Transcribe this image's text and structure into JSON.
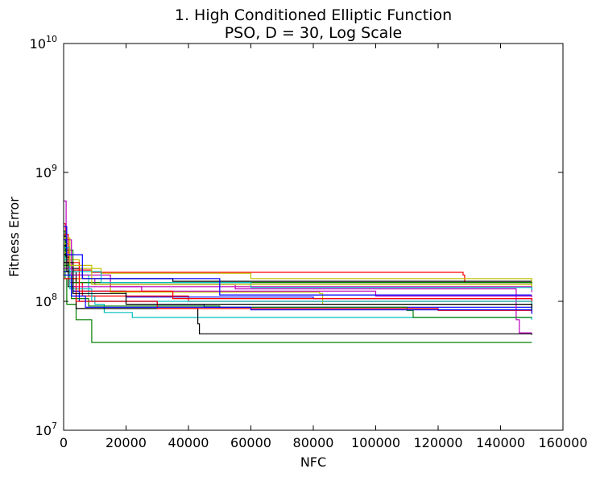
{
  "chart_data": {
    "type": "line",
    "title": "1.   High Conditioned Elliptic Function",
    "subtitle": "PSO, D = 30, Log Scale",
    "xlabel": "NFC",
    "ylabel": "Fitness Error",
    "xlim": [
      0,
      160000
    ],
    "ylim": [
      10000000,
      10000000000
    ],
    "yscale": "log",
    "grid": false,
    "x_ticks": [
      0,
      20000,
      40000,
      60000,
      80000,
      100000,
      120000,
      140000,
      160000
    ],
    "x_tick_labels": [
      "0",
      "20000",
      "40000",
      "60000",
      "80000",
      "100000",
      "120000",
      "140000",
      "160000"
    ],
    "y_ticks": [
      {
        "value": 10000000,
        "base": "10",
        "exp": "7"
      },
      {
        "value": 100000000,
        "base": "10",
        "exp": "8"
      },
      {
        "value": 1000000000,
        "base": "10",
        "exp": "9"
      },
      {
        "value": 10000000000,
        "base": "10",
        "exp": "10"
      }
    ],
    "series": [
      {
        "color": "#ff0000",
        "points": [
          [
            0,
            400000000
          ],
          [
            600,
            250000000
          ],
          [
            1500,
            190000000
          ],
          [
            3000,
            175000000
          ],
          [
            9000,
            168000000
          ],
          [
            118000,
            168000000
          ],
          [
            128000,
            160000000
          ],
          [
            128500,
            140000000
          ],
          [
            150000,
            140000000
          ]
        ]
      },
      {
        "color": "#008000",
        "points": [
          [
            0,
            350000000
          ],
          [
            500,
            150000000
          ],
          [
            1000,
            95000000
          ],
          [
            4000,
            72000000
          ],
          [
            9000,
            48000000
          ],
          [
            150000,
            48000000
          ]
        ]
      },
      {
        "color": "#000000",
        "points": [
          [
            0,
            320000000
          ],
          [
            800,
            220000000
          ],
          [
            2000,
            180000000
          ],
          [
            6000,
            150000000
          ],
          [
            30000,
            150000000
          ],
          [
            35000,
            143000000
          ],
          [
            150000,
            143000000
          ]
        ]
      },
      {
        "color": "#bfbf00",
        "points": [
          [
            0,
            280000000
          ],
          [
            1500,
            210000000
          ],
          [
            5000,
            180000000
          ],
          [
            12000,
            165000000
          ],
          [
            60000,
            150000000
          ],
          [
            150000,
            125000000
          ]
        ]
      },
      {
        "color": "#00bfbf",
        "points": [
          [
            0,
            220000000
          ],
          [
            1500,
            160000000
          ],
          [
            8000,
            110000000
          ],
          [
            10000,
            95000000
          ],
          [
            13000,
            82000000
          ],
          [
            22000,
            75000000
          ],
          [
            150000,
            72000000
          ]
        ]
      },
      {
        "color": "#0000ff",
        "points": [
          [
            0,
            300000000
          ],
          [
            1000,
            200000000
          ],
          [
            3000,
            120000000
          ],
          [
            5000,
            100000000
          ],
          [
            30000,
            95000000
          ],
          [
            45000,
            90000000
          ],
          [
            150000,
            90000000
          ]
        ]
      },
      {
        "color": "#bf00bf",
        "points": [
          [
            0,
            200000000
          ],
          [
            2000,
            150000000
          ],
          [
            10000,
            135000000
          ],
          [
            55000,
            125000000
          ],
          [
            145000,
            72000000
          ],
          [
            146000,
            57000000
          ],
          [
            150000,
            57000000
          ]
        ]
      },
      {
        "color": "#ff0000",
        "points": [
          [
            0,
            260000000
          ],
          [
            2000,
            140000000
          ],
          [
            6000,
            110000000
          ],
          [
            40000,
            100000000
          ],
          [
            150000,
            95000000
          ]
        ]
      },
      {
        "color": "#000000",
        "points": [
          [
            0,
            230000000
          ],
          [
            1500,
            130000000
          ],
          [
            4000,
            88000000
          ],
          [
            38000,
            88000000
          ],
          [
            43000,
            67000000
          ],
          [
            43500,
            56000000
          ],
          [
            150000,
            55000000
          ]
        ]
      },
      {
        "color": "#008000",
        "points": [
          [
            0,
            190000000
          ],
          [
            2500,
            105000000
          ],
          [
            8000,
            92000000
          ],
          [
            50000,
            90000000
          ],
          [
            110000,
            85000000
          ],
          [
            112000,
            75000000
          ],
          [
            150000,
            75000000
          ]
        ]
      },
      {
        "color": "#0000ff",
        "points": [
          [
            0,
            170000000
          ],
          [
            3000,
            120000000
          ],
          [
            20000,
            108000000
          ],
          [
            80000,
            105000000
          ],
          [
            150000,
            103000000
          ]
        ]
      },
      {
        "color": "#bfbf00",
        "points": [
          [
            0,
            240000000
          ],
          [
            2000,
            150000000
          ],
          [
            15000,
            118000000
          ],
          [
            82000,
            115000000
          ],
          [
            83000,
            95000000
          ],
          [
            150000,
            95000000
          ]
        ]
      },
      {
        "color": "#00bfbf",
        "points": [
          [
            0,
            210000000
          ],
          [
            2000,
            125000000
          ],
          [
            9000,
            100000000
          ],
          [
            150000,
            85000000
          ]
        ]
      },
      {
        "color": "#bf00bf",
        "points": [
          [
            0,
            180000000
          ],
          [
            3000,
            130000000
          ],
          [
            25000,
            120000000
          ],
          [
            100000,
            110000000
          ],
          [
            150000,
            108000000
          ]
        ]
      },
      {
        "color": "#ff0000",
        "points": [
          [
            0,
            150000000
          ],
          [
            4000,
            100000000
          ],
          [
            30000,
            88000000
          ],
          [
            120000,
            85000000
          ],
          [
            150000,
            82000000
          ]
        ]
      },
      {
        "color": "#000000",
        "points": [
          [
            0,
            270000000
          ],
          [
            1000,
            170000000
          ],
          [
            4000,
            140000000
          ],
          [
            150000,
            140000000
          ]
        ]
      },
      {
        "color": "#0000ff",
        "points": [
          [
            0,
            160000000
          ],
          [
            2500,
            110000000
          ],
          [
            7000,
            90000000
          ],
          [
            60000,
            86000000
          ],
          [
            150000,
            80000000
          ]
        ]
      },
      {
        "color": "#008000",
        "points": [
          [
            0,
            250000000
          ],
          [
            3000,
            140000000
          ],
          [
            150000,
            138000000
          ]
        ]
      },
      {
        "color": "#bf00bf",
        "points": [
          [
            0,
            600000000
          ],
          [
            800,
            300000000
          ],
          [
            2500,
            160000000
          ],
          [
            15000,
            130000000
          ],
          [
            150000,
            118000000
          ]
        ]
      },
      {
        "color": "#ff0000",
        "points": [
          [
            0,
            330000000
          ],
          [
            1500,
            200000000
          ],
          [
            5000,
            120000000
          ],
          [
            35000,
            105000000
          ],
          [
            150000,
            100000000
          ]
        ]
      },
      {
        "color": "#00bfbf",
        "points": [
          [
            0,
            260000000
          ],
          [
            2000,
            170000000
          ],
          [
            12000,
            140000000
          ],
          [
            60000,
            128000000
          ],
          [
            150000,
            122000000
          ]
        ]
      },
      {
        "color": "#000000",
        "points": [
          [
            0,
            200000000
          ],
          [
            3000,
            115000000
          ],
          [
            20000,
            95000000
          ],
          [
            150000,
            87000000
          ]
        ]
      },
      {
        "color": "#bfbf00",
        "points": [
          [
            0,
            310000000
          ],
          [
            2000,
            190000000
          ],
          [
            9000,
            135000000
          ],
          [
            150000,
            130000000
          ]
        ]
      },
      {
        "color": "#0000ff",
        "points": [
          [
            0,
            380000000
          ],
          [
            1000,
            230000000
          ],
          [
            6000,
            150000000
          ],
          [
            50000,
            112000000
          ],
          [
            150000,
            112000000
          ]
        ]
      }
    ]
  }
}
